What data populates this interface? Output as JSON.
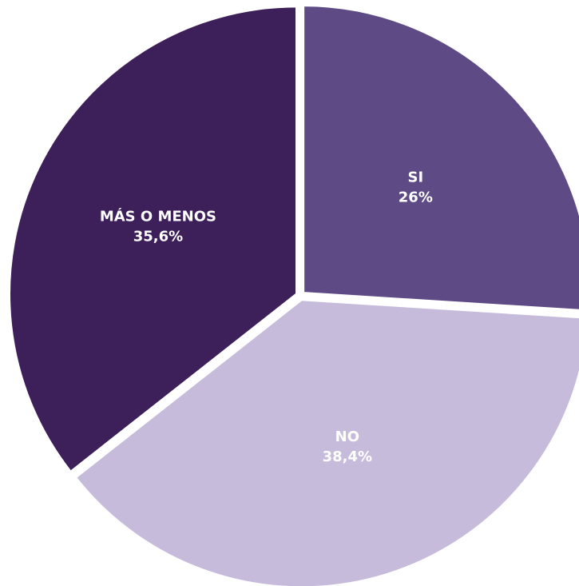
{
  "chart_data": {
    "type": "pie",
    "categories": [
      "SI",
      "NO",
      "MÁS O MENOS"
    ],
    "values": [
      26,
      38.4,
      35.6
    ],
    "value_labels": [
      "26%",
      "38,4%",
      "35,6%"
    ],
    "colors": [
      "#5e4b85",
      "#c7bbdb",
      "#3d1f5a"
    ]
  }
}
